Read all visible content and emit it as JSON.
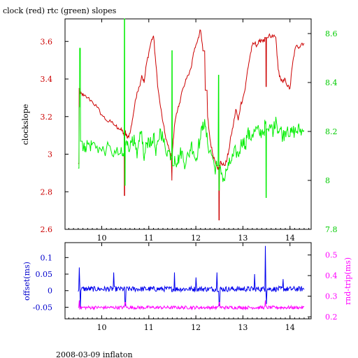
{
  "title": "clock (red) rtc (green) slopes",
  "footer": "2008-03-09 inflaton",
  "colors": {
    "clock": "#cc0000",
    "rtc": "#00ee00",
    "offset": "#0000ee",
    "rndtrip": "#ff00ff",
    "axis": "#000000"
  },
  "chart_data": [
    {
      "type": "line",
      "title": "clock (red) rtc (green) slopes",
      "ylabel": "clockslope",
      "y2label": "",
      "xlim": [
        9.22,
        14.45
      ],
      "ylim": [
        2.6,
        3.72
      ],
      "y2lim": [
        7.8,
        8.66
      ],
      "xticks": [
        10,
        11,
        12,
        13,
        14
      ],
      "xtick_labels": [
        "10",
        "11",
        "12",
        "13",
        "14"
      ],
      "yticks": [
        2.6,
        2.8,
        3,
        3.2,
        3.4,
        3.6
      ],
      "ytick_labels": [
        "2.6",
        "2.8",
        "3",
        "3.2",
        "3.4",
        "3.6"
      ],
      "y2ticks": [
        7.8,
        8,
        8.2,
        8.4,
        8.6
      ],
      "y2tick_labels": [
        "7.8",
        "8",
        "8.2",
        "8.4",
        "8.6"
      ],
      "series": [
        {
          "axis": "left",
          "color": "#cc0000",
          "x": [
            9.5,
            9.52,
            9.53,
            9.55,
            9.58,
            9.62,
            9.7,
            9.8,
            9.9,
            10.0,
            10.1,
            10.2,
            10.3,
            10.35,
            10.4,
            10.45,
            10.47,
            10.48,
            10.49,
            10.5,
            10.52,
            10.55,
            10.6,
            10.65,
            10.7,
            10.75,
            10.8,
            10.85,
            10.9,
            10.95,
            11.0,
            11.05,
            11.1,
            11.15,
            11.2,
            11.25,
            11.3,
            11.35,
            11.4,
            11.45,
            11.48,
            11.49,
            11.5,
            11.52,
            11.55,
            11.6,
            11.65,
            11.7,
            11.75,
            11.8,
            11.9,
            11.95,
            12.0,
            12.05,
            12.1,
            12.15,
            12.2,
            12.25,
            12.3,
            12.35,
            12.4,
            12.45,
            12.48,
            12.49,
            12.5,
            12.52,
            12.55,
            12.6,
            12.65,
            12.7,
            12.75,
            12.8,
            12.85,
            12.9,
            12.95,
            13.0,
            13.05,
            13.1,
            13.15,
            13.2,
            13.25,
            13.3,
            13.35,
            13.4,
            13.45,
            13.48,
            13.49,
            13.5,
            13.55,
            13.6,
            13.65,
            13.7,
            13.75,
            13.8,
            13.85,
            13.9,
            13.95,
            14.0,
            14.05,
            14.1,
            14.15,
            14.2,
            14.25,
            14.3
          ],
          "y": [
            2.95,
            3.35,
            3.33,
            3.32,
            3.32,
            3.31,
            3.3,
            3.28,
            3.25,
            3.21,
            3.18,
            3.17,
            3.15,
            3.14,
            3.13,
            3.12,
            3.1,
            2.78,
            3.1,
            3.12,
            3.1,
            3.09,
            3.11,
            3.18,
            3.26,
            3.33,
            3.36,
            3.42,
            3.38,
            3.48,
            3.54,
            3.6,
            3.63,
            3.48,
            3.34,
            3.25,
            3.17,
            3.1,
            3.05,
            3.01,
            2.98,
            2.86,
            3.0,
            3.08,
            3.16,
            3.22,
            3.27,
            3.33,
            3.36,
            3.4,
            3.46,
            3.54,
            3.58,
            3.62,
            3.66,
            3.55,
            3.34,
            3.2,
            3.08,
            3.01,
            2.97,
            2.94,
            2.92,
            2.65,
            2.94,
            2.96,
            2.95,
            2.94,
            2.96,
            3.02,
            3.1,
            3.16,
            3.24,
            3.18,
            3.26,
            3.3,
            3.35,
            3.45,
            3.52,
            3.58,
            3.59,
            3.58,
            3.6,
            3.61,
            3.6,
            3.62,
            3.36,
            3.62,
            3.63,
            3.62,
            3.63,
            3.62,
            3.45,
            3.4,
            3.38,
            3.4,
            3.36,
            3.35,
            3.47,
            3.55,
            3.58,
            3.57,
            3.59,
            3.59
          ]
        },
        {
          "axis": "right",
          "color": "#00ee00",
          "x": [
            9.5,
            9.52,
            9.53,
            9.55,
            9.6,
            9.65,
            9.7,
            9.75,
            9.8,
            9.9,
            10.0,
            10.1,
            10.2,
            10.3,
            10.4,
            10.45,
            10.47,
            10.48,
            10.49,
            10.5,
            10.55,
            10.6,
            10.65,
            10.7,
            10.75,
            10.8,
            10.85,
            10.9,
            10.95,
            11.0,
            11.05,
            11.1,
            11.15,
            11.2,
            11.25,
            11.3,
            11.35,
            11.4,
            11.45,
            11.48,
            11.49,
            11.5,
            11.55,
            11.6,
            11.65,
            11.7,
            11.75,
            11.8,
            11.85,
            11.9,
            11.95,
            12.0,
            12.05,
            12.1,
            12.15,
            12.2,
            12.25,
            12.3,
            12.35,
            12.4,
            12.45,
            12.48,
            12.49,
            12.5,
            12.55,
            12.6,
            12.65,
            12.7,
            12.75,
            12.8,
            12.85,
            12.9,
            12.95,
            13.0,
            13.05,
            13.1,
            13.15,
            13.2,
            13.25,
            13.3,
            13.35,
            13.4,
            13.45,
            13.48,
            13.49,
            13.5,
            13.55,
            13.6,
            13.65,
            13.7,
            13.75,
            13.8,
            13.85,
            13.9,
            13.95,
            14.0,
            14.05,
            14.1,
            14.15,
            14.2,
            14.25,
            14.3
          ],
          "y": [
            8.05,
            8.3,
            8.54,
            8.16,
            8.12,
            8.14,
            8.15,
            8.14,
            8.15,
            8.14,
            8.12,
            8.13,
            8.12,
            8.11,
            8.11,
            8.1,
            8.1,
            8.66,
            7.98,
            8.14,
            8.16,
            8.13,
            8.18,
            8.15,
            8.09,
            8.16,
            8.2,
            8.08,
            8.15,
            8.17,
            8.14,
            8.19,
            8.1,
            8.16,
            8.21,
            8.17,
            8.13,
            8.12,
            8.11,
            8.1,
            8.53,
            8.06,
            8.1,
            8.07,
            8.1,
            8.12,
            8.07,
            8.09,
            8.1,
            8.15,
            8.12,
            8.08,
            8.14,
            8.17,
            8.24,
            8.22,
            8.15,
            8.12,
            8.1,
            8.05,
            8.06,
            8.43,
            7.96,
            8.04,
            8.03,
            8.0,
            8.04,
            8.06,
            8.08,
            8.1,
            8.12,
            8.1,
            8.14,
            8.17,
            8.14,
            8.2,
            8.17,
            8.19,
            8.2,
            8.21,
            8.19,
            8.2,
            8.2,
            8.24,
            7.93,
            8.21,
            8.2,
            8.22,
            8.2,
            8.26,
            8.2,
            8.21,
            8.18,
            8.2,
            8.22,
            8.18,
            8.2,
            8.2,
            8.2,
            8.21,
            8.2,
            8.2
          ]
        }
      ]
    },
    {
      "type": "line",
      "ylabel": "offset(ms)",
      "y2label": "rnd-trip(ms)",
      "xlim": [
        9.22,
        14.45
      ],
      "ylim": [
        -0.085,
        0.145
      ],
      "y2lim": [
        0.19,
        0.56
      ],
      "xticks": [
        10,
        11,
        12,
        13,
        14
      ],
      "xtick_labels": [
        "10",
        "11",
        "12",
        "13",
        "14"
      ],
      "yticks": [
        -0.05,
        0,
        0.05,
        0.1
      ],
      "ytick_labels": [
        "-0.05",
        "0",
        "0.05",
        "0.1"
      ],
      "y2ticks": [
        0.2,
        0.3,
        0.4,
        0.5
      ],
      "y2tick_labels": [
        "0.2",
        "0.3",
        "0.4",
        "0.5"
      ],
      "series": [
        {
          "axis": "left",
          "color": "#0000ee",
          "base": 0.005,
          "noise": 0.008,
          "x_range": [
            9.5,
            14.3
          ],
          "spikes": [
            [
              9.52,
              0.07
            ],
            [
              9.55,
              -0.055
            ],
            [
              10.25,
              0.055
            ],
            [
              10.5,
              -0.045
            ],
            [
              11.55,
              0.055
            ],
            [
              12.0,
              0.04
            ],
            [
              12.45,
              0.055
            ],
            [
              12.5,
              -0.045
            ],
            [
              13.25,
              0.05
            ],
            [
              13.48,
              0.135
            ],
            [
              13.5,
              -0.04
            ],
            [
              13.85,
              0.035
            ]
          ]
        },
        {
          "axis": "right",
          "color": "#ff00ff",
          "base": 0.245,
          "noise": 0.008,
          "x_range": [
            9.5,
            14.3
          ],
          "spikes": [
            [
              9.52,
              0.28
            ],
            [
              10.5,
              0.27
            ],
            [
              12.5,
              0.27
            ],
            [
              13.48,
              0.28
            ]
          ]
        }
      ]
    }
  ]
}
